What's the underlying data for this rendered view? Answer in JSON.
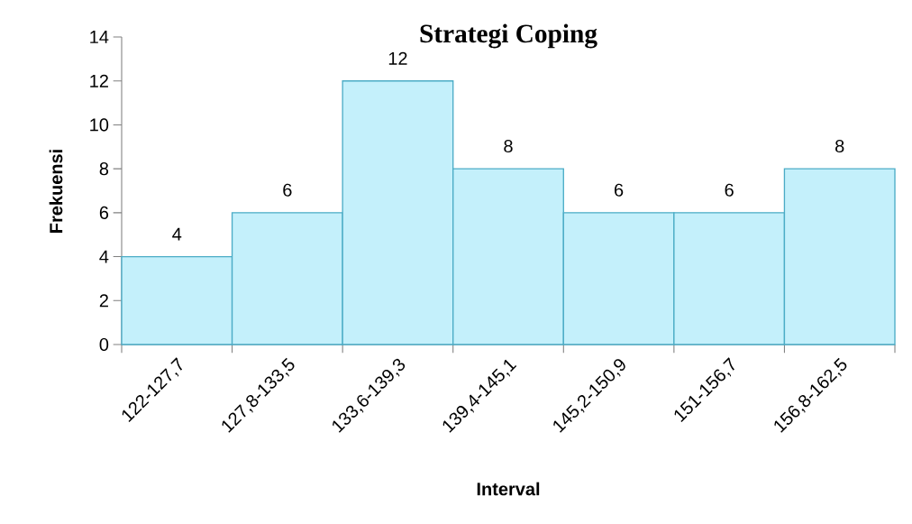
{
  "chart_data": {
    "type": "bar",
    "title": "Strategi Coping",
    "xlabel": "Interval",
    "ylabel": "Frekuensi",
    "categories": [
      "122-127,7",
      "127,8-133,5",
      "133,6-139,3",
      "139,4-145,1",
      "145,2-150,9",
      "151-156,7",
      "156,8-162,5"
    ],
    "values": [
      4,
      6,
      12,
      8,
      6,
      6,
      8
    ],
    "color": "#c4f0fb",
    "ylim": [
      0,
      14
    ],
    "yticks": [
      0,
      2,
      4,
      6,
      8,
      10,
      12,
      14
    ],
    "data_labels": true
  }
}
